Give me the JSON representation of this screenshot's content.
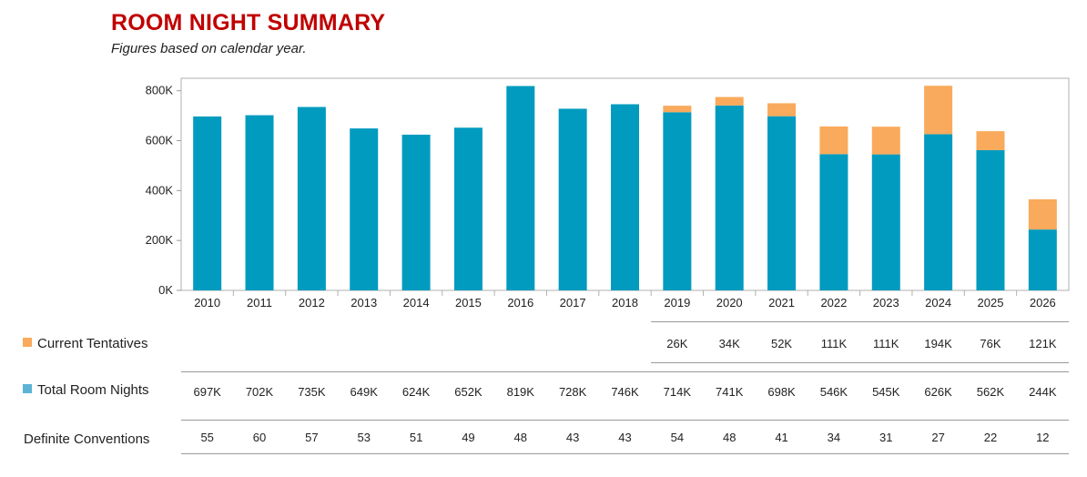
{
  "title": "ROOM NIGHT SUMMARY",
  "subtitle": "Figures based on calendar year.",
  "colors": {
    "total": "#009bbf",
    "tentative": "#f9aa5c",
    "title": "#c00000"
  },
  "chart_data": {
    "type": "bar",
    "stacked": true,
    "categories": [
      "2010",
      "2011",
      "2012",
      "2013",
      "2014",
      "2015",
      "2016",
      "2017",
      "2018",
      "2019",
      "2020",
      "2021",
      "2022",
      "2023",
      "2024",
      "2025",
      "2026"
    ],
    "series": [
      {
        "name": "Total Room Nights",
        "values": [
          697,
          702,
          735,
          649,
          624,
          652,
          819,
          728,
          746,
          714,
          741,
          698,
          546,
          545,
          626,
          562,
          244
        ]
      },
      {
        "name": "Current Tentatives",
        "values": [
          0,
          0,
          0,
          0,
          0,
          0,
          0,
          0,
          0,
          26,
          34,
          52,
          111,
          111,
          194,
          76,
          121
        ]
      }
    ],
    "yunit": "K",
    "ylim": [
      0,
      850
    ],
    "yticks": [
      "0K",
      "200K",
      "400K",
      "600K",
      "800K"
    ],
    "ytick_values": [
      0,
      200,
      400,
      600,
      800
    ],
    "grid": false
  },
  "table": {
    "tentatives": {
      "label": "Current Tentatives",
      "values": [
        "",
        "",
        "",
        "",
        "",
        "",
        "",
        "",
        "",
        "26K",
        "34K",
        "52K",
        "111K",
        "111K",
        "194K",
        "76K",
        "121K"
      ]
    },
    "totals": {
      "label": "Total Room Nights",
      "values": [
        "697K",
        "702K",
        "735K",
        "649K",
        "624K",
        "652K",
        "819K",
        "728K",
        "746K",
        "714K",
        "741K",
        "698K",
        "546K",
        "545K",
        "626K",
        "562K",
        "244K"
      ]
    },
    "conventions": {
      "label": "Definite Conventions",
      "values": [
        "55",
        "60",
        "57",
        "53",
        "51",
        "49",
        "48",
        "43",
        "43",
        "54",
        "48",
        "41",
        "34",
        "31",
        "27",
        "22",
        "12"
      ]
    }
  }
}
